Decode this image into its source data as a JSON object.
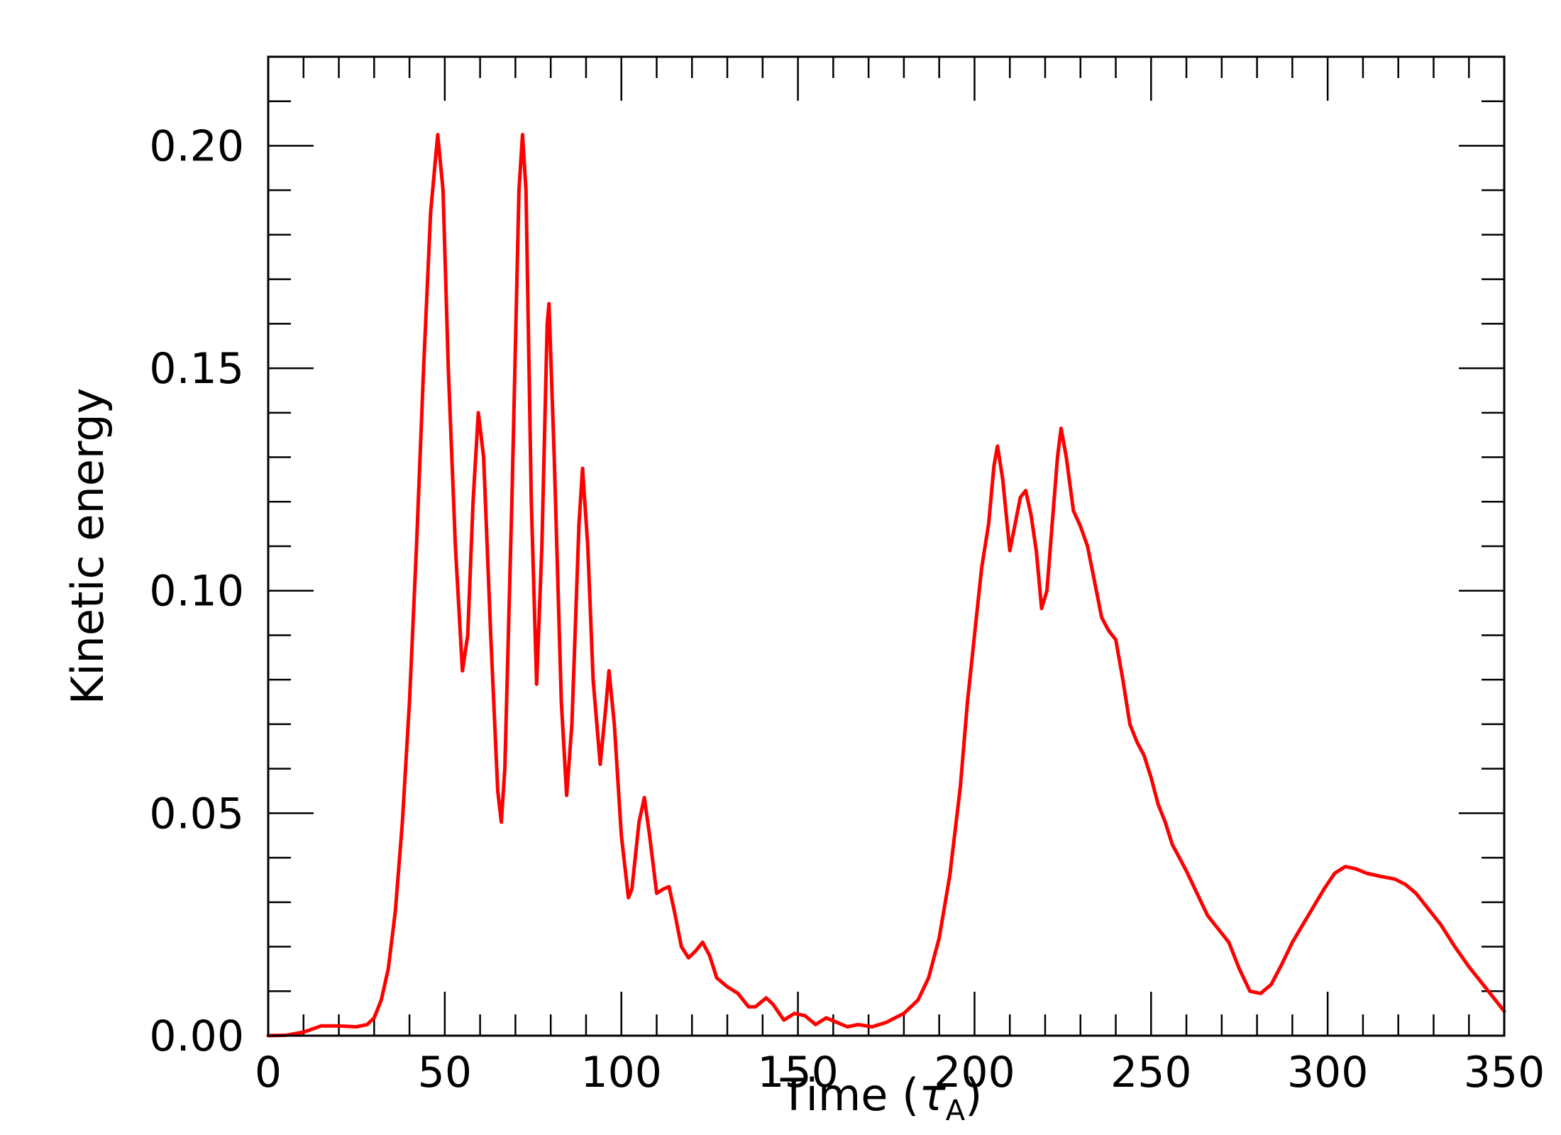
{
  "chart_data": {
    "type": "line",
    "title": "",
    "xlabel": "Time (",
    "xlabel_symbol": "τ",
    "xlabel_subscript": "A",
    "xlabel_close": ")",
    "ylabel": "Kinetic energy",
    "xlim": [
      0,
      350
    ],
    "ylim": [
      0,
      0.22
    ],
    "x_ticks": [
      0,
      50,
      100,
      150,
      200,
      250,
      300,
      350
    ],
    "x_tick_labels": [
      "0",
      "50",
      "100",
      "150",
      "200",
      "250",
      "300",
      "350"
    ],
    "y_ticks": [
      0.0,
      0.05,
      0.1,
      0.15,
      0.2
    ],
    "y_tick_labels": [
      "0.00",
      "0.05",
      "0.10",
      "0.15",
      "0.20"
    ],
    "x_minor_step": 10,
    "y_minor_step": 0.01,
    "grid": false,
    "legend": "none",
    "series": [
      {
        "color": "#ff0000",
        "points": [
          [
            0,
            0.0
          ],
          [
            5,
            0.0001
          ],
          [
            10,
            0.0008
          ],
          [
            15,
            0.0022
          ],
          [
            20,
            0.0022
          ],
          [
            25,
            0.002
          ],
          [
            28,
            0.0025
          ],
          [
            30,
            0.004
          ],
          [
            32,
            0.008
          ],
          [
            34,
            0.015
          ],
          [
            36,
            0.028
          ],
          [
            38,
            0.048
          ],
          [
            40,
            0.075
          ],
          [
            42,
            0.11
          ],
          [
            44,
            0.15
          ],
          [
            46,
            0.185
          ],
          [
            48,
            0.2025
          ],
          [
            49.5,
            0.19
          ],
          [
            51,
            0.15
          ],
          [
            53,
            0.11
          ],
          [
            55,
            0.082
          ],
          [
            56.5,
            0.09
          ],
          [
            58,
            0.12
          ],
          [
            59.5,
            0.14
          ],
          [
            61,
            0.13
          ],
          [
            63,
            0.09
          ],
          [
            65,
            0.055
          ],
          [
            66,
            0.048
          ],
          [
            67,
            0.06
          ],
          [
            69,
            0.12
          ],
          [
            71,
            0.19
          ],
          [
            72,
            0.2025
          ],
          [
            73,
            0.19
          ],
          [
            74.5,
            0.12
          ],
          [
            76,
            0.079
          ],
          [
            77.5,
            0.11
          ],
          [
            79,
            0.16
          ],
          [
            79.5,
            0.1645
          ],
          [
            81,
            0.13
          ],
          [
            83,
            0.075
          ],
          [
            84.5,
            0.054
          ],
          [
            86,
            0.07
          ],
          [
            88,
            0.115
          ],
          [
            89,
            0.1275
          ],
          [
            90.5,
            0.11
          ],
          [
            92,
            0.08
          ],
          [
            94,
            0.061
          ],
          [
            95.5,
            0.073
          ],
          [
            96.5,
            0.082
          ],
          [
            98,
            0.07
          ],
          [
            100,
            0.045
          ],
          [
            102,
            0.031
          ],
          [
            103,
            0.033
          ],
          [
            105,
            0.048
          ],
          [
            106.5,
            0.0535
          ],
          [
            108,
            0.045
          ],
          [
            110,
            0.032
          ],
          [
            112,
            0.033
          ],
          [
            113.5,
            0.0335
          ],
          [
            115,
            0.028
          ],
          [
            117,
            0.02
          ],
          [
            119,
            0.0175
          ],
          [
            121,
            0.019
          ],
          [
            123,
            0.021
          ],
          [
            125,
            0.018
          ],
          [
            127,
            0.013
          ],
          [
            130,
            0.011
          ],
          [
            133,
            0.0095
          ],
          [
            136,
            0.0065
          ],
          [
            138,
            0.0065
          ],
          [
            141,
            0.0085
          ],
          [
            143,
            0.007
          ],
          [
            146,
            0.0035
          ],
          [
            149,
            0.005
          ],
          [
            152,
            0.0045
          ],
          [
            155,
            0.0025
          ],
          [
            158,
            0.004
          ],
          [
            161,
            0.003
          ],
          [
            164,
            0.002
          ],
          [
            167,
            0.0025
          ],
          [
            171,
            0.002
          ],
          [
            175,
            0.003
          ],
          [
            180,
            0.005
          ],
          [
            184,
            0.008
          ],
          [
            187,
            0.013
          ],
          [
            190,
            0.022
          ],
          [
            193,
            0.036
          ],
          [
            196,
            0.056
          ],
          [
            198,
            0.075
          ],
          [
            200,
            0.09
          ],
          [
            202,
            0.105
          ],
          [
            204,
            0.115
          ],
          [
            205.5,
            0.128
          ],
          [
            206.5,
            0.1325
          ],
          [
            208,
            0.125
          ],
          [
            210,
            0.109
          ],
          [
            211.5,
            0.115
          ],
          [
            213,
            0.121
          ],
          [
            214.5,
            0.1225
          ],
          [
            216,
            0.117
          ],
          [
            217.5,
            0.109
          ],
          [
            219,
            0.096
          ],
          [
            220.5,
            0.1
          ],
          [
            222,
            0.115
          ],
          [
            223.5,
            0.13
          ],
          [
            224.5,
            0.1365
          ],
          [
            226,
            0.13
          ],
          [
            228,
            0.118
          ],
          [
            230,
            0.1145
          ],
          [
            232,
            0.11
          ],
          [
            234,
            0.102
          ],
          [
            236,
            0.094
          ],
          [
            238,
            0.091
          ],
          [
            240,
            0.089
          ],
          [
            242,
            0.08
          ],
          [
            244,
            0.07
          ],
          [
            246,
            0.066
          ],
          [
            248,
            0.063
          ],
          [
            250,
            0.058
          ],
          [
            252,
            0.052
          ],
          [
            254,
            0.048
          ],
          [
            256,
            0.043
          ],
          [
            258,
            0.04
          ],
          [
            260,
            0.037
          ],
          [
            263,
            0.032
          ],
          [
            266,
            0.027
          ],
          [
            269,
            0.024
          ],
          [
            272,
            0.021
          ],
          [
            275,
            0.015
          ],
          [
            278,
            0.01
          ],
          [
            281,
            0.0095
          ],
          [
            284,
            0.0115
          ],
          [
            287,
            0.016
          ],
          [
            290,
            0.021
          ],
          [
            293,
            0.025
          ],
          [
            296,
            0.029
          ],
          [
            299,
            0.033
          ],
          [
            302,
            0.0365
          ],
          [
            305,
            0.038
          ],
          [
            308,
            0.0375
          ],
          [
            311,
            0.0365
          ],
          [
            315,
            0.0358
          ],
          [
            319,
            0.0352
          ],
          [
            322,
            0.034
          ],
          [
            325,
            0.032
          ],
          [
            328,
            0.029
          ],
          [
            332,
            0.025
          ],
          [
            336,
            0.02
          ],
          [
            340,
            0.0155
          ],
          [
            345,
            0.0105
          ],
          [
            350,
            0.0055
          ]
        ]
      }
    ]
  }
}
